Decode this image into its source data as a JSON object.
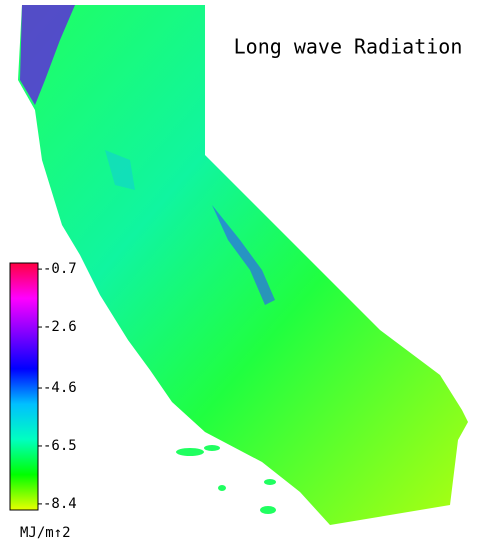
{
  "title": "Long wave Radiation",
  "colorbar": {
    "unit": "MJ/m↑2",
    "lim": [
      -8.6,
      -0.5
    ],
    "ticks": [
      -0.7,
      -2.6,
      -4.6,
      -6.5,
      -8.4
    ],
    "colors": [
      "#e8ff00",
      "#00ff00",
      "#00ffc0",
      "#00c0ff",
      "#0000ff",
      "#8000ff",
      "#ff00ff",
      "#ff0040"
    ]
  }
}
